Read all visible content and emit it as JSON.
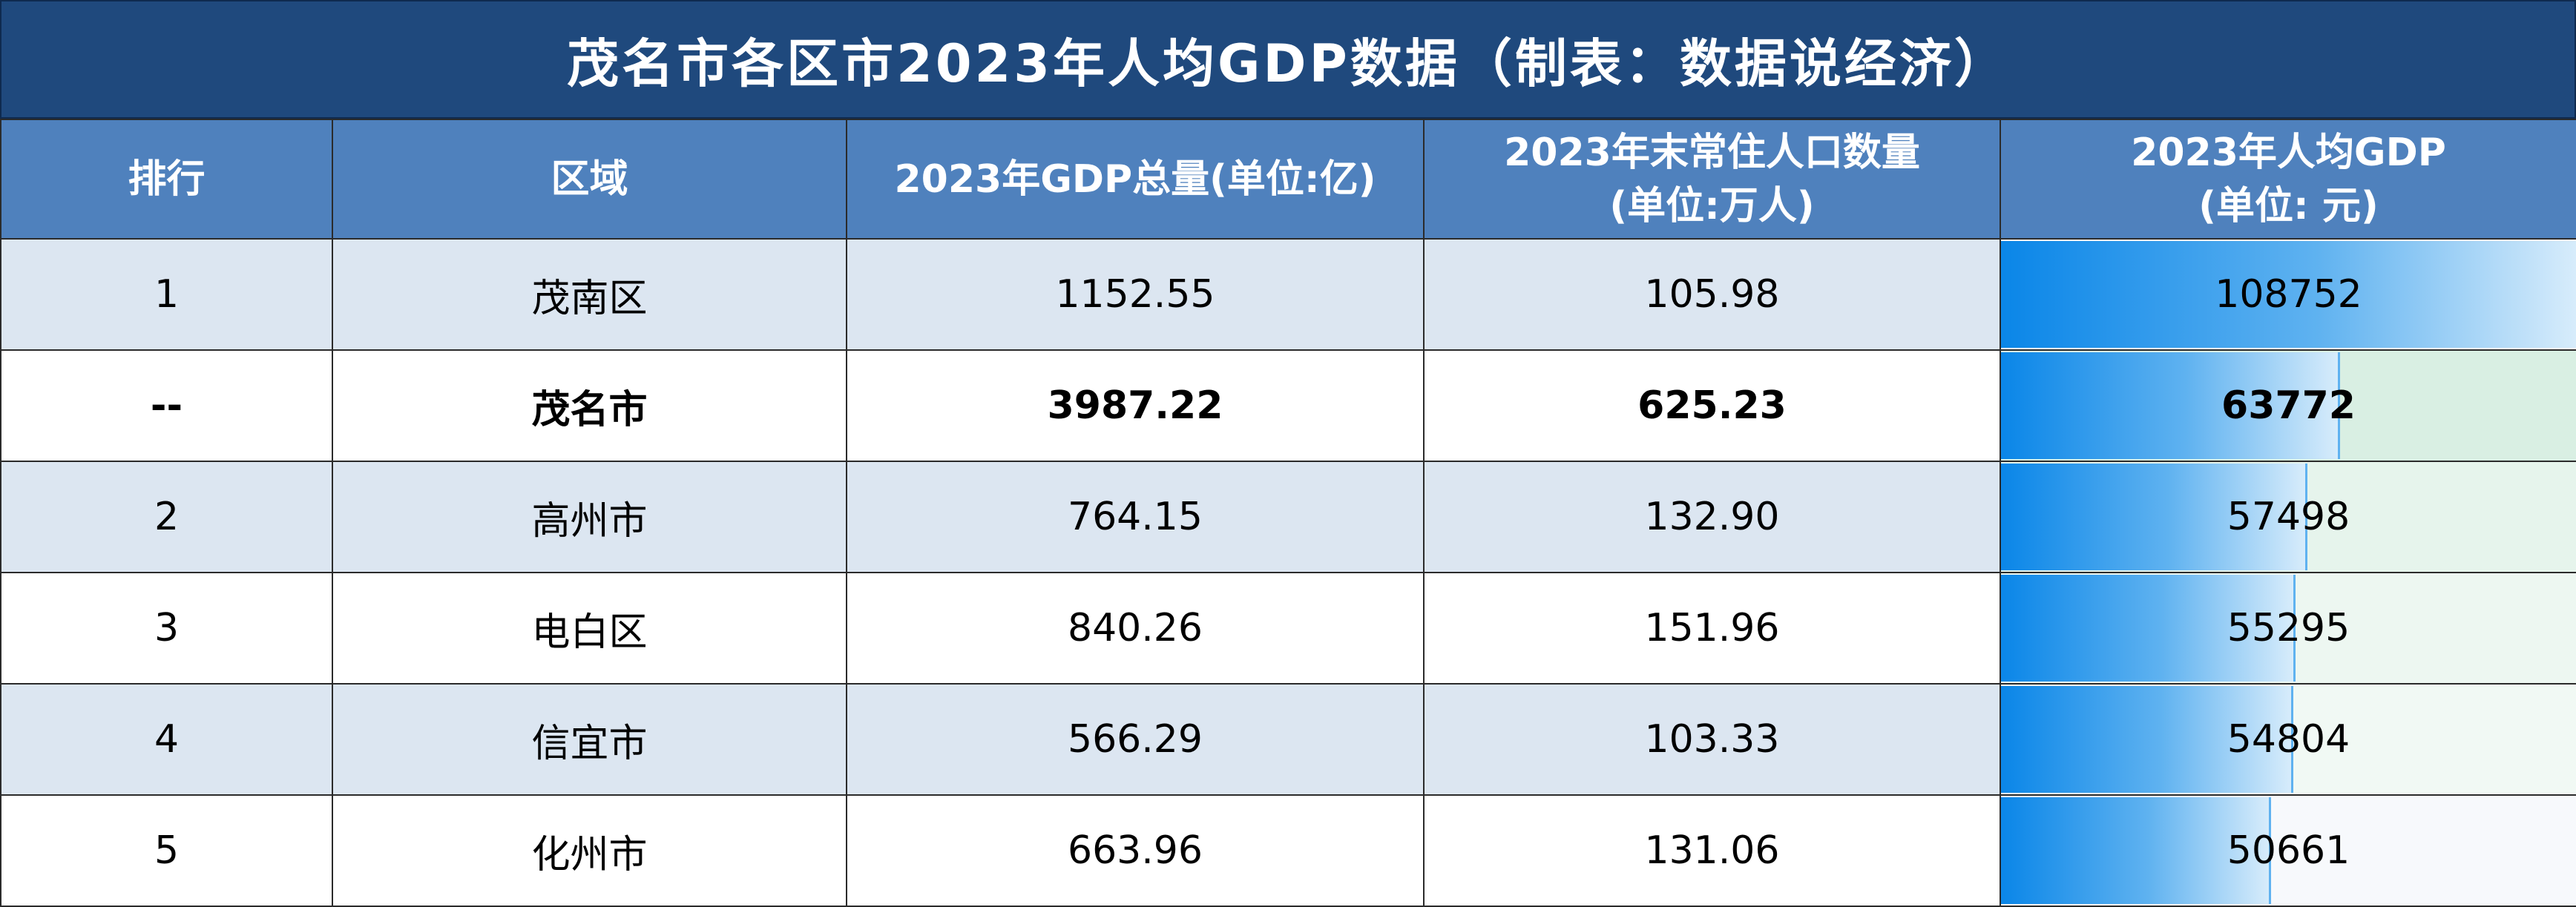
{
  "title": "茂名市各区市2023年人均GDP数据（制表：数据说经济）",
  "headers": {
    "rank": "排行",
    "region": "区域",
    "gdp": "2023年GDP总量(单位:亿)",
    "pop_line1": "2023年末常住人口数量",
    "pop_line2": "(单位:万人)",
    "pcgdp_line1": "2023年人均GDP",
    "pcgdp_line2": "(单位: 元)"
  },
  "rows": [
    {
      "rank": "1",
      "region": "茂南区",
      "gdp": "1152.55",
      "population": "105.98",
      "per_capita": "108752",
      "bar_fraction": 1.0,
      "bar_bg": "#ffffff"
    },
    {
      "rank": "--",
      "region": "茂名市",
      "gdp": "3987.22",
      "population": "625.23",
      "per_capita": "63772",
      "bar_fraction": 0.586,
      "bar_bg": "#d9efe3"
    },
    {
      "rank": "2",
      "region": "高州市",
      "gdp": "764.15",
      "population": "132.90",
      "per_capita": "57498",
      "bar_fraction": 0.529,
      "bar_bg": "#e6f4ec"
    },
    {
      "rank": "3",
      "region": "电白区",
      "gdp": "840.26",
      "population": "151.96",
      "per_capita": "55295",
      "bar_fraction": 0.508,
      "bar_bg": "#edf7f1"
    },
    {
      "rank": "4",
      "region": "信宜市",
      "gdp": "566.29",
      "population": "103.33",
      "per_capita": "54804",
      "bar_fraction": 0.504,
      "bar_bg": "#f1f9f4"
    },
    {
      "rank": "5",
      "region": "化州市",
      "gdp": "663.96",
      "population": "131.06",
      "per_capita": "50661",
      "bar_fraction": 0.466,
      "bar_bg": "#f7f9fc"
    }
  ]
}
